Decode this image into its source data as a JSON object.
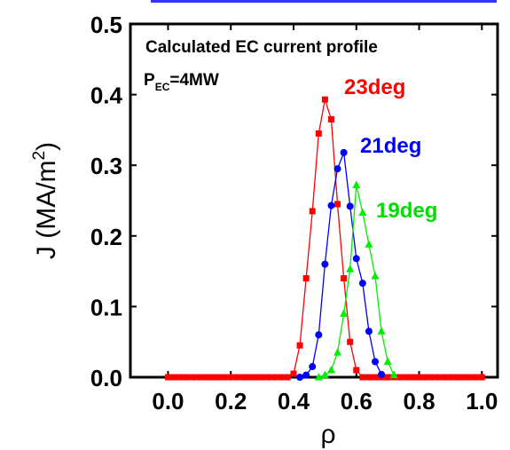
{
  "chart_data": {
    "type": "line",
    "xlabel": "ρ",
    "ylabel_main": "J (MA/m",
    "ylabel_sup": "2",
    "ylabel_close": ")",
    "xlim": [
      -0.12,
      1.05
    ],
    "ylim": [
      0.0,
      0.5
    ],
    "xticks": [
      0.0,
      0.2,
      0.4,
      0.6,
      0.8,
      1.0
    ],
    "xtick_labels": [
      "0.0",
      "0.2",
      "0.4",
      "0.6",
      "0.8",
      "1.0"
    ],
    "yticks": [
      0.0,
      0.1,
      0.2,
      0.3,
      0.4,
      0.5
    ],
    "ytick_labels": [
      "0.0",
      "0.1",
      "0.2",
      "0.3",
      "0.4",
      "0.5"
    ],
    "grid": false,
    "annotations": {
      "title_text": "Calculated EC current profile",
      "power_main": "P",
      "power_sub": "EC",
      "power_value": "=4MW"
    },
    "series": [
      {
        "name": "23deg",
        "color": "#ff0000",
        "marker": "square",
        "x": [
          0.0,
          0.02,
          0.04,
          0.06,
          0.08,
          0.1,
          0.12,
          0.14,
          0.16,
          0.18,
          0.2,
          0.22,
          0.24,
          0.26,
          0.28,
          0.3,
          0.32,
          0.34,
          0.36,
          0.38,
          0.4,
          0.42,
          0.44,
          0.46,
          0.48,
          0.5,
          0.52,
          0.54,
          0.56,
          0.58,
          0.6,
          0.62,
          0.64,
          0.66,
          0.68,
          0.7,
          0.72,
          0.74,
          0.76,
          0.78,
          0.8,
          0.82,
          0.84,
          0.86,
          0.88,
          0.9,
          0.92,
          0.94,
          0.96,
          0.98,
          1.0
        ],
        "y": [
          0,
          0,
          0,
          0,
          0,
          0,
          0,
          0,
          0,
          0,
          0,
          0,
          0,
          0,
          0,
          0,
          0,
          0,
          0,
          0,
          0.005,
          0.045,
          0.14,
          0.235,
          0.345,
          0.393,
          0.365,
          0.245,
          0.14,
          0.05,
          0.01,
          0,
          0,
          0,
          0,
          0,
          0,
          0,
          0,
          0,
          0,
          0,
          0,
          0,
          0,
          0,
          0,
          0,
          0,
          0,
          0
        ]
      },
      {
        "name": "21deg",
        "color": "#0000ff",
        "marker": "circle",
        "x": [
          0.42,
          0.44,
          0.46,
          0.48,
          0.5,
          0.52,
          0.54,
          0.56,
          0.58,
          0.6,
          0.62,
          0.64,
          0.66,
          0.68
        ],
        "y": [
          0,
          0.003,
          0.015,
          0.06,
          0.16,
          0.243,
          0.295,
          0.318,
          0.242,
          0.168,
          0.133,
          0.065,
          0.022,
          0.004
        ]
      },
      {
        "name": "19deg",
        "color": "#00ee00",
        "marker": "triangle",
        "x": [
          0.48,
          0.5,
          0.52,
          0.54,
          0.56,
          0.58,
          0.6,
          0.62,
          0.64,
          0.66,
          0.68,
          0.7,
          0.72
        ],
        "y": [
          0,
          0.003,
          0.01,
          0.035,
          0.09,
          0.153,
          0.272,
          0.233,
          0.188,
          0.143,
          0.065,
          0.022,
          0.003
        ]
      }
    ]
  }
}
